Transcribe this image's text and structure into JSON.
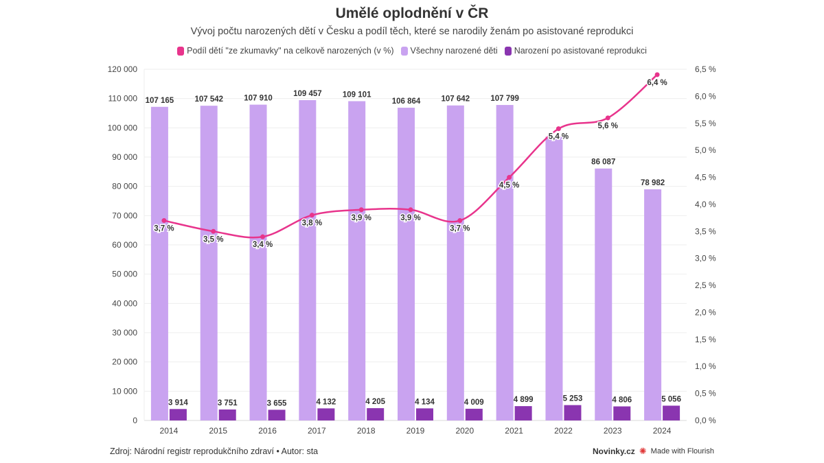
{
  "chart_data": {
    "type": "bar",
    "title": "Umělé oplodnění v ČR",
    "subtitle": "Vývoj počtu narozených dětí v Česku a podíl těch, které se narodily ženám po asistované reprodukci",
    "categories": [
      "2014",
      "2015",
      "2016",
      "2017",
      "2018",
      "2019",
      "2020",
      "2021",
      "2022",
      "2023",
      "2024"
    ],
    "series": [
      {
        "name": "Podíl dětí \"ze zkumavky\" na celkově narozených (v %)",
        "type": "line",
        "axis": "right",
        "color": "#e8348c",
        "values": [
          3.7,
          3.5,
          3.4,
          3.8,
          3.9,
          3.9,
          3.7,
          4.5,
          5.4,
          5.6,
          6.4
        ],
        "labels": [
          "3,7 %",
          "3,5 %",
          "3,4 %",
          "3,8 %",
          "3,9 %",
          "3,9 %",
          "3,7 %",
          "4,5 %",
          "5,4 %",
          "5,6 %",
          "6,4 %"
        ]
      },
      {
        "name": "Všechny narozené děti",
        "type": "bar",
        "axis": "left",
        "color": "#c9a3f0",
        "values": [
          107165,
          107542,
          107910,
          109457,
          109101,
          106864,
          107642,
          107799,
          97000,
          86087,
          78982
        ],
        "labels": [
          "107 165",
          "107 542",
          "107 910",
          "109 457",
          "109 101",
          "106 864",
          "107 642",
          "107 799",
          "",
          "86 087",
          "78 982"
        ]
      },
      {
        "name": "Narození po asistované reprodukci",
        "type": "bar",
        "axis": "left",
        "color": "#8a35b0",
        "values": [
          3914,
          3751,
          3655,
          4132,
          4205,
          4134,
          4009,
          4899,
          5253,
          4806,
          5056
        ],
        "labels": [
          "3 914",
          "3 751",
          "3 655",
          "4 132",
          "4 205",
          "4 134",
          "4 009",
          "4 899",
          "5 253",
          "4 806",
          "5 056"
        ]
      }
    ],
    "left_axis": {
      "ylim": [
        0,
        120000
      ],
      "ticks": [
        0,
        10000,
        20000,
        30000,
        40000,
        50000,
        60000,
        70000,
        80000,
        90000,
        100000,
        110000,
        120000
      ],
      "tick_labels": [
        "0",
        "10 000",
        "20 000",
        "30 000",
        "40 000",
        "50 000",
        "60 000",
        "70 000",
        "80 000",
        "90 000",
        "100 000",
        "110 000",
        "120 000"
      ]
    },
    "right_axis": {
      "ylim": [
        0,
        6.5
      ],
      "ticks": [
        0,
        0.5,
        1,
        1.5,
        2,
        2.5,
        3,
        3.5,
        4,
        4.5,
        5,
        5.5,
        6,
        6.5
      ],
      "tick_labels": [
        "0,0 %",
        "0,5 %",
        "1,0 %",
        "1,5 %",
        "2,0 %",
        "2,5 %",
        "3,0 %",
        "3,5 %",
        "4,0 %",
        "4,5 %",
        "5,0 %",
        "5,5 %",
        "6,0 %",
        "6,5 %"
      ]
    },
    "grid": true,
    "legend_position": "top-center",
    "xlabel": "",
    "ylabel": ""
  },
  "footer": {
    "source": "Zdroj: Národní registr reprodukčního zdraví • Autor: sta",
    "brand": "Novinky.cz",
    "flourish": "Made with Flourish"
  }
}
